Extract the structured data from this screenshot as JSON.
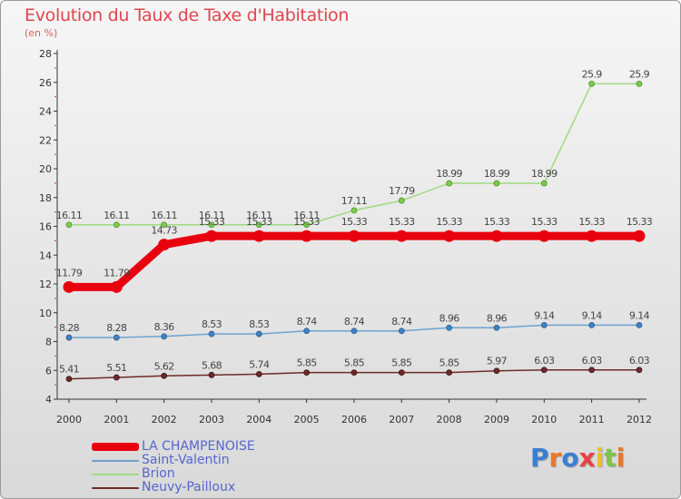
{
  "header": {
    "title": "Evolution du Taux de Taxe d'Habitation",
    "unit": "(en %)"
  },
  "logo": {
    "text": "Proxiti"
  },
  "chart_data": {
    "type": "line",
    "title": "Evolution du Taux de Taxe d'Habitation",
    "ylabel": "(en %)",
    "xlabel": "",
    "ylim": [
      4,
      28
    ],
    "yticks": [
      4,
      6,
      8,
      10,
      12,
      14,
      16,
      18,
      20,
      22,
      24,
      26,
      28
    ],
    "grid": false,
    "legend_position": "bottom-left",
    "x": [
      "2000",
      "2001",
      "2002",
      "2003",
      "2004",
      "2005",
      "2006",
      "2007",
      "2008",
      "2009",
      "2010",
      "2011",
      "2012"
    ],
    "series": [
      {
        "name": "LA CHAMPENOISE",
        "color": "#e8000f",
        "values": [
          11.79,
          11.79,
          14.73,
          15.33,
          15.33,
          15.33,
          15.33,
          15.33,
          15.33,
          15.33,
          15.33,
          15.33,
          15.33
        ],
        "labels": [
          "11.79",
          "11.79",
          "14.73",
          "15.33",
          "15.33",
          "15.33",
          "15.33",
          "15.33",
          "15.33",
          "15.33",
          "15.33",
          "15.33",
          "15.33"
        ]
      },
      {
        "name": "Saint-Valentin",
        "color": "#6fa2cf",
        "values": [
          8.28,
          8.28,
          8.36,
          8.53,
          8.53,
          8.74,
          8.74,
          8.74,
          8.96,
          8.96,
          9.14,
          9.14,
          9.14
        ],
        "labels": [
          "8.28",
          "8.28",
          "8.36",
          "8.53",
          "8.53",
          "8.74",
          "8.74",
          "8.74",
          "8.96",
          "8.96",
          "9.14",
          "9.14",
          "9.14"
        ]
      },
      {
        "name": "Brion",
        "color": "#9fdb80",
        "values": [
          16.11,
          16.11,
          16.11,
          16.11,
          16.11,
          16.11,
          17.11,
          17.79,
          18.99,
          18.99,
          18.99,
          25.9,
          25.9
        ],
        "labels": [
          "16.11",
          "16.11",
          "16.11",
          "16.11",
          "16.11",
          "16.11",
          "17.11",
          "17.79",
          "18.99",
          "18.99",
          "18.99",
          "25.9",
          "25.9"
        ]
      },
      {
        "name": "Neuvy-Pailloux",
        "color": "#6e2a2a",
        "values": [
          5.41,
          5.51,
          5.62,
          5.68,
          5.74,
          5.85,
          5.85,
          5.85,
          5.85,
          5.97,
          6.03,
          6.03,
          6.03
        ],
        "labels": [
          "5.41",
          "5.51",
          "5.62",
          "5.68",
          "5.74",
          "5.85",
          "5.85",
          "5.85",
          "5.85",
          "5.97",
          "6.03",
          "6.03",
          "6.03"
        ]
      }
    ]
  }
}
